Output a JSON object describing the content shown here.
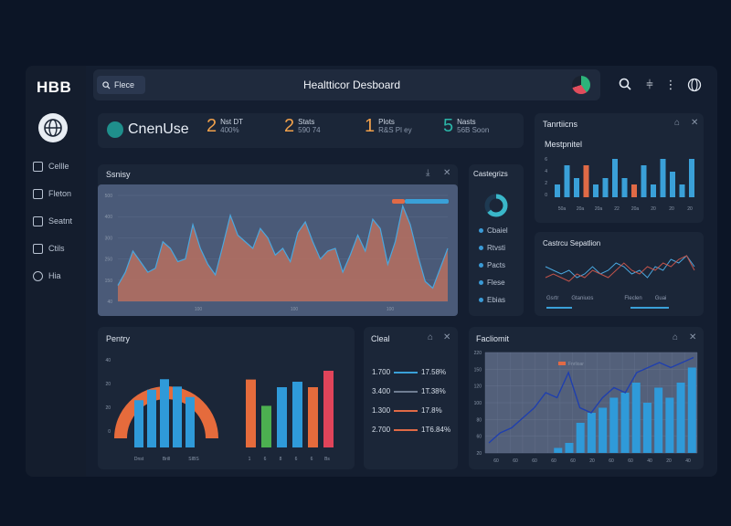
{
  "app": {
    "logo": "HBB",
    "title": "Healtticor Desboard"
  },
  "search": {
    "label": "Flece"
  },
  "sidebar": {
    "items": [
      {
        "label": "Cellle",
        "icon": "calendar-icon"
      },
      {
        "label": "Fleton",
        "icon": "document-icon"
      },
      {
        "label": "Seatnt",
        "icon": "card-icon"
      },
      {
        "label": "Ctils",
        "icon": "file-icon"
      },
      {
        "label": "Hia",
        "icon": "settings-icon"
      }
    ]
  },
  "stats": {
    "brand": "CnenUse",
    "items": [
      {
        "num": "2",
        "line1": "Nst DT",
        "line2": "400%",
        "color": "#f0a04b"
      },
      {
        "num": "2",
        "line1": "Stats",
        "line2": "590 74",
        "color": "#f0a04b"
      },
      {
        "num": "1",
        "line1": "Plots",
        "line2": "R&S Pl ey",
        "color": "#f0a04b"
      },
      {
        "num": "5",
        "line1": "Nasts",
        "line2": "56B Soon",
        "color": "#2bb5a8"
      }
    ]
  },
  "panels": {
    "transitions": {
      "title": "Tanrtiicns",
      "subtitle": "Mestpnitel"
    },
    "survey": {
      "title": "Ssnisy"
    },
    "categories": {
      "title": "Castegrizs",
      "items": [
        "Cbaiel",
        "Rtvsti",
        "Pacts",
        "Flese",
        "Ebias"
      ]
    },
    "distribution": {
      "title": "Castrcu Sepatlion",
      "legend": [
        "Gsrtr",
        "Gtaniuos",
        "Fleclen",
        "Guai"
      ]
    },
    "pentry": {
      "title": "Pentry"
    },
    "cleal": {
      "title": "Cleal",
      "rows": [
        {
          "value": "1.700",
          "change": "17.58%",
          "color": "#3aa0d8"
        },
        {
          "value": "3.400",
          "change": "1T.38%",
          "color": "#6f7d92"
        },
        {
          "value": "1.300",
          "change": "17.8%",
          "color": "#e06a46"
        },
        {
          "value": "2.700",
          "change": "1T6.84%",
          "color": "#e06a46"
        }
      ]
    },
    "facliomit": {
      "title": "Facliomit",
      "legend": "Fnrlioar"
    }
  },
  "chart_data": [
    {
      "type": "area",
      "title": "Ssnisy",
      "y_ticks": [
        "500",
        "400",
        "300",
        "250",
        "150",
        "40"
      ],
      "x_ticks": [
        "100",
        "100",
        "100"
      ],
      "values": [
        12,
        22,
        38,
        30,
        22,
        25,
        45,
        40,
        30,
        32,
        58,
        40,
        28,
        20,
        42,
        65,
        50,
        45,
        40,
        55,
        48,
        35,
        40,
        30,
        52,
        60,
        45,
        32,
        38,
        40,
        22,
        35,
        50,
        38,
        62,
        55,
        28,
        45,
        72,
        58,
        35,
        15,
        10,
        25,
        40
      ]
    },
    {
      "type": "bar",
      "title": "Mestpnitel",
      "y_ticks": [
        "6",
        "4",
        "2",
        "0"
      ],
      "x_ticks": [
        "50a",
        "20a",
        "20a",
        "22",
        "20a",
        "20",
        "20",
        "20"
      ],
      "values": [
        2,
        5,
        3,
        5,
        2,
        3,
        6,
        3,
        2,
        5,
        2,
        6,
        4,
        2,
        6
      ],
      "colors": [
        "#3aa0d8",
        "#3aa0d8",
        "#3aa0d8",
        "#e06a46",
        "#3aa0d8",
        "#3aa0d8",
        "#3aa0d8",
        "#3aa0d8",
        "#e06a46",
        "#3aa0d8",
        "#3aa0d8",
        "#3aa0d8",
        "#3aa0d8",
        "#3aa0d8",
        "#3aa0d8"
      ]
    },
    {
      "type": "line",
      "title": "Castrcu Sepatlion",
      "series": [
        {
          "name": "Gsrtr",
          "values": [
            6,
            5,
            4,
            5,
            3,
            4,
            6,
            4,
            5,
            7,
            6,
            4,
            5,
            3,
            6,
            5,
            8,
            7,
            9,
            6
          ]
        },
        {
          "name": "Fleclen",
          "values": [
            3,
            4,
            3,
            2,
            4,
            3,
            5,
            4,
            3,
            5,
            7,
            5,
            4,
            6,
            5,
            7,
            6,
            8,
            9,
            5
          ]
        }
      ]
    },
    {
      "type": "bar",
      "title": "Pentry",
      "y_ticks": [
        "40",
        "20",
        "20",
        "0"
      ],
      "x_ticks": [
        "Dnst",
        "Brill",
        "SIBS",
        "1",
        "6",
        "8",
        "6",
        "6",
        "Bs"
      ],
      "gauge": [
        0.0,
        1.0
      ],
      "values": [
        45,
        55,
        65,
        58,
        48,
        62,
        38,
        55,
        60,
        55,
        70,
        48
      ]
    },
    {
      "type": "line",
      "title": "Facliomit",
      "y_ticks": [
        "220",
        "150",
        "120",
        "100",
        "80",
        "60",
        "20"
      ],
      "x_ticks": [
        "60",
        "60",
        "60",
        "60",
        "60",
        "20",
        "60",
        "60",
        "40",
        "20",
        "40"
      ],
      "series": [
        {
          "name": "Fnrlioar",
          "values": [
            10,
            20,
            25,
            35,
            45,
            60,
            55,
            80,
            45,
            40,
            55,
            65,
            60,
            80,
            85,
            90,
            85,
            90,
            95
          ]
        }
      ],
      "bars": [
        0,
        0,
        0,
        0,
        0,
        0,
        5,
        10,
        30,
        40,
        45,
        55,
        60,
        70,
        50,
        65,
        55,
        70,
        85
      ]
    }
  ]
}
